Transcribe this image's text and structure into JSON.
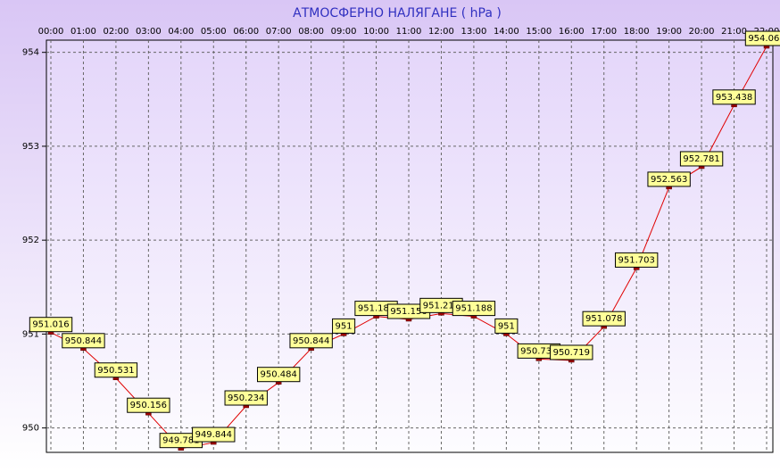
{
  "chart_data": {
    "type": "line",
    "title": "АТМОСФЕРНО НАЛЯГАНЕ  ( hPa )",
    "categories": [
      "00:00",
      "01:00",
      "02:00",
      "03:00",
      "04:00",
      "05:00",
      "06:00",
      "07:00",
      "08:00",
      "09:00",
      "10:00",
      "11:00",
      "12:00",
      "13:00",
      "14:00",
      "15:00",
      "16:00",
      "17:00",
      "18:00",
      "19:00",
      "20:00",
      "21:00",
      "22:00"
    ],
    "series": [
      {
        "name": "АТМОСФЕРНО НАЛЯГАНЕ",
        "color": "#e00000",
        "values": [
          951.016,
          950.844,
          950.531,
          950.156,
          949.781,
          949.844,
          950.234,
          950.484,
          950.844,
          951,
          951.188,
          951.156,
          951.219,
          951.188,
          951,
          950.734,
          950.719,
          951.078,
          951.703,
          952.563,
          952.781,
          953.438,
          954.063
        ]
      }
    ],
    "ylim": [
      949.74,
      954.13
    ],
    "yticks": [
      950,
      951,
      952,
      953,
      954
    ],
    "grid": true
  }
}
